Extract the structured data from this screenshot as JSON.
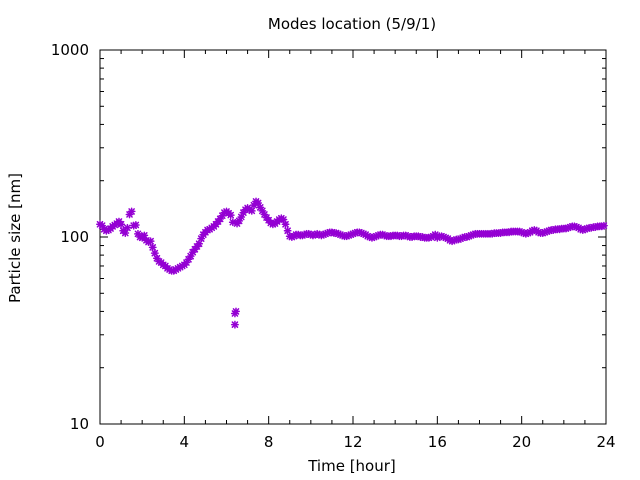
{
  "chart_data": {
    "type": "scatter",
    "title": "Modes location (5/9/1)",
    "xlabel": "Time [hour]",
    "ylabel": "Particle size [nm]",
    "xlim": [
      0,
      24
    ],
    "ylim": [
      10,
      1000
    ],
    "yscale": "log",
    "grid": false,
    "legend": "none",
    "xticks": [
      0,
      4,
      8,
      12,
      16,
      20,
      24
    ],
    "xtick_labels": [
      "0",
      "4",
      "8",
      "12",
      "16",
      "20",
      "24"
    ],
    "yticks": [
      10,
      100,
      1000
    ],
    "ytick_labels": [
      "10",
      "100",
      "1000"
    ],
    "series": [
      {
        "color": "#9400d3",
        "marker": "asterisk",
        "points": [
          [
            0.0,
            117
          ],
          [
            0.1,
            115
          ],
          [
            0.2,
            110
          ],
          [
            0.3,
            108
          ],
          [
            0.4,
            109
          ],
          [
            0.5,
            111
          ],
          [
            0.6,
            114
          ],
          [
            0.7,
            116
          ],
          [
            0.8,
            118
          ],
          [
            0.9,
            121
          ],
          [
            1.0,
            117
          ],
          [
            1.1,
            108
          ],
          [
            1.2,
            105
          ],
          [
            1.3,
            112
          ],
          [
            1.4,
            132
          ],
          [
            1.5,
            137
          ],
          [
            1.6,
            115
          ],
          [
            1.7,
            116
          ],
          [
            1.8,
            104
          ],
          [
            1.9,
            100
          ],
          [
            2.0,
            99
          ],
          [
            2.1,
            102
          ],
          [
            2.2,
            96
          ],
          [
            2.3,
            94
          ],
          [
            2.4,
            95
          ],
          [
            2.5,
            88
          ],
          [
            2.6,
            82
          ],
          [
            2.7,
            77
          ],
          [
            2.8,
            74
          ],
          [
            2.9,
            73
          ],
          [
            3.0,
            71
          ],
          [
            3.1,
            70
          ],
          [
            3.2,
            68
          ],
          [
            3.3,
            67
          ],
          [
            3.4,
            66
          ],
          [
            3.5,
            66
          ],
          [
            3.6,
            67
          ],
          [
            3.7,
            68
          ],
          [
            3.8,
            69
          ],
          [
            3.9,
            70
          ],
          [
            4.0,
            71
          ],
          [
            4.1,
            73
          ],
          [
            4.2,
            76
          ],
          [
            4.3,
            79
          ],
          [
            4.4,
            83
          ],
          [
            4.5,
            86
          ],
          [
            4.6,
            89
          ],
          [
            4.7,
            92
          ],
          [
            4.8,
            98
          ],
          [
            4.9,
            103
          ],
          [
            5.0,
            106
          ],
          [
            5.1,
            109
          ],
          [
            5.2,
            110
          ],
          [
            5.3,
            112
          ],
          [
            5.4,
            114
          ],
          [
            5.5,
            117
          ],
          [
            5.6,
            121
          ],
          [
            5.7,
            125
          ],
          [
            5.8,
            130
          ],
          [
            5.9,
            135
          ],
          [
            6.0,
            137
          ],
          [
            6.1,
            134
          ],
          [
            6.2,
            131
          ],
          [
            6.3,
            120
          ],
          [
            6.4,
            39
          ],
          [
            6.45,
            40
          ],
          [
            6.4,
            34
          ],
          [
            6.5,
            118
          ],
          [
            6.6,
            122
          ],
          [
            6.7,
            128
          ],
          [
            6.8,
            135
          ],
          [
            6.9,
            140
          ],
          [
            7.0,
            143
          ],
          [
            7.1,
            141
          ],
          [
            7.2,
            138
          ],
          [
            7.3,
            148
          ],
          [
            7.4,
            155
          ],
          [
            7.5,
            152
          ],
          [
            7.6,
            144
          ],
          [
            7.7,
            138
          ],
          [
            7.8,
            132
          ],
          [
            7.9,
            127
          ],
          [
            8.0,
            123
          ],
          [
            8.1,
            119
          ],
          [
            8.2,
            117
          ],
          [
            8.3,
            118
          ],
          [
            8.4,
            121
          ],
          [
            8.5,
            124
          ],
          [
            8.6,
            126
          ],
          [
            8.7,
            124
          ],
          [
            8.8,
            117
          ],
          [
            8.9,
            108
          ],
          [
            9.0,
            101
          ],
          [
            9.1,
            100
          ],
          [
            9.2,
            101
          ],
          [
            9.3,
            103
          ],
          [
            9.4,
            103
          ],
          [
            9.5,
            102
          ],
          [
            9.6,
            102
          ],
          [
            9.7,
            103
          ],
          [
            9.8,
            104
          ],
          [
            9.9,
            104
          ],
          [
            10.0,
            103
          ],
          [
            10.1,
            102
          ],
          [
            10.2,
            103
          ],
          [
            10.3,
            104
          ],
          [
            10.4,
            103
          ],
          [
            10.5,
            102
          ],
          [
            10.6,
            103
          ],
          [
            10.7,
            104
          ],
          [
            10.8,
            105
          ],
          [
            10.9,
            106
          ],
          [
            11.0,
            106
          ],
          [
            11.1,
            105
          ],
          [
            11.2,
            105
          ],
          [
            11.3,
            104
          ],
          [
            11.4,
            103
          ],
          [
            11.5,
            102
          ],
          [
            11.6,
            101
          ],
          [
            11.7,
            101
          ],
          [
            11.8,
            102
          ],
          [
            11.9,
            103
          ],
          [
            12.0,
            104
          ],
          [
            12.1,
            105
          ],
          [
            12.2,
            106
          ],
          [
            12.3,
            106
          ],
          [
            12.4,
            105
          ],
          [
            12.5,
            104
          ],
          [
            12.6,
            103
          ],
          [
            12.7,
            101
          ],
          [
            12.8,
            100
          ],
          [
            12.9,
            99
          ],
          [
            13.0,
            100
          ],
          [
            13.1,
            101
          ],
          [
            13.2,
            102
          ],
          [
            13.3,
            103
          ],
          [
            13.4,
            103
          ],
          [
            13.5,
            102
          ],
          [
            13.6,
            101
          ],
          [
            13.7,
            101
          ],
          [
            13.8,
            101
          ],
          [
            13.9,
            102
          ],
          [
            14.0,
            102
          ],
          [
            14.1,
            102
          ],
          [
            14.2,
            101
          ],
          [
            14.3,
            101
          ],
          [
            14.4,
            102
          ],
          [
            14.5,
            102
          ],
          [
            14.6,
            101
          ],
          [
            14.7,
            100
          ],
          [
            14.8,
            100
          ],
          [
            14.9,
            101
          ],
          [
            15.0,
            101
          ],
          [
            15.1,
            101
          ],
          [
            15.2,
            100
          ],
          [
            15.3,
            100
          ],
          [
            15.4,
            99
          ],
          [
            15.5,
            99
          ],
          [
            15.6,
            99
          ],
          [
            15.7,
            100
          ],
          [
            15.8,
            101
          ],
          [
            15.9,
            103
          ],
          [
            16.0,
            99
          ],
          [
            16.1,
            101
          ],
          [
            16.2,
            101
          ],
          [
            16.3,
            100
          ],
          [
            16.4,
            99
          ],
          [
            16.5,
            98
          ],
          [
            16.6,
            96
          ],
          [
            16.7,
            95
          ],
          [
            16.8,
            96
          ],
          [
            16.9,
            97
          ],
          [
            17.0,
            97
          ],
          [
            17.1,
            98
          ],
          [
            17.2,
            99
          ],
          [
            17.3,
            100
          ],
          [
            17.4,
            100
          ],
          [
            17.5,
            101
          ],
          [
            17.6,
            102
          ],
          [
            17.7,
            103
          ],
          [
            17.8,
            104
          ],
          [
            17.9,
            104
          ],
          [
            18.0,
            104
          ],
          [
            18.1,
            104
          ],
          [
            18.2,
            104
          ],
          [
            18.3,
            104
          ],
          [
            18.4,
            104
          ],
          [
            18.5,
            104
          ],
          [
            18.6,
            104
          ],
          [
            18.7,
            105
          ],
          [
            18.8,
            105
          ],
          [
            18.9,
            105
          ],
          [
            19.0,
            105
          ],
          [
            19.1,
            106
          ],
          [
            19.2,
            106
          ],
          [
            19.3,
            106
          ],
          [
            19.4,
            106
          ],
          [
            19.5,
            107
          ],
          [
            19.6,
            107
          ],
          [
            19.7,
            107
          ],
          [
            19.8,
            107
          ],
          [
            19.9,
            107
          ],
          [
            20.0,
            106
          ],
          [
            20.1,
            105
          ],
          [
            20.2,
            104
          ],
          [
            20.3,
            105
          ],
          [
            20.4,
            106
          ],
          [
            20.5,
            108
          ],
          [
            20.6,
            109
          ],
          [
            20.7,
            108
          ],
          [
            20.8,
            106
          ],
          [
            20.9,
            105
          ],
          [
            21.0,
            105
          ],
          [
            21.1,
            106
          ],
          [
            21.2,
            107
          ],
          [
            21.3,
            108
          ],
          [
            21.4,
            109
          ],
          [
            21.5,
            109
          ],
          [
            21.6,
            110
          ],
          [
            21.7,
            110
          ],
          [
            21.8,
            110
          ],
          [
            21.9,
            111
          ],
          [
            22.0,
            111
          ],
          [
            22.1,
            111
          ],
          [
            22.2,
            112
          ],
          [
            22.3,
            113
          ],
          [
            22.4,
            114
          ],
          [
            22.5,
            114
          ],
          [
            22.6,
            113
          ],
          [
            22.7,
            112
          ],
          [
            22.8,
            110
          ],
          [
            22.9,
            109
          ],
          [
            23.0,
            110
          ],
          [
            23.1,
            111
          ],
          [
            23.2,
            112
          ],
          [
            23.3,
            112
          ],
          [
            23.4,
            113
          ],
          [
            23.5,
            113
          ],
          [
            23.6,
            114
          ],
          [
            23.7,
            114
          ],
          [
            23.8,
            114
          ],
          [
            23.9,
            115
          ]
        ]
      }
    ]
  }
}
